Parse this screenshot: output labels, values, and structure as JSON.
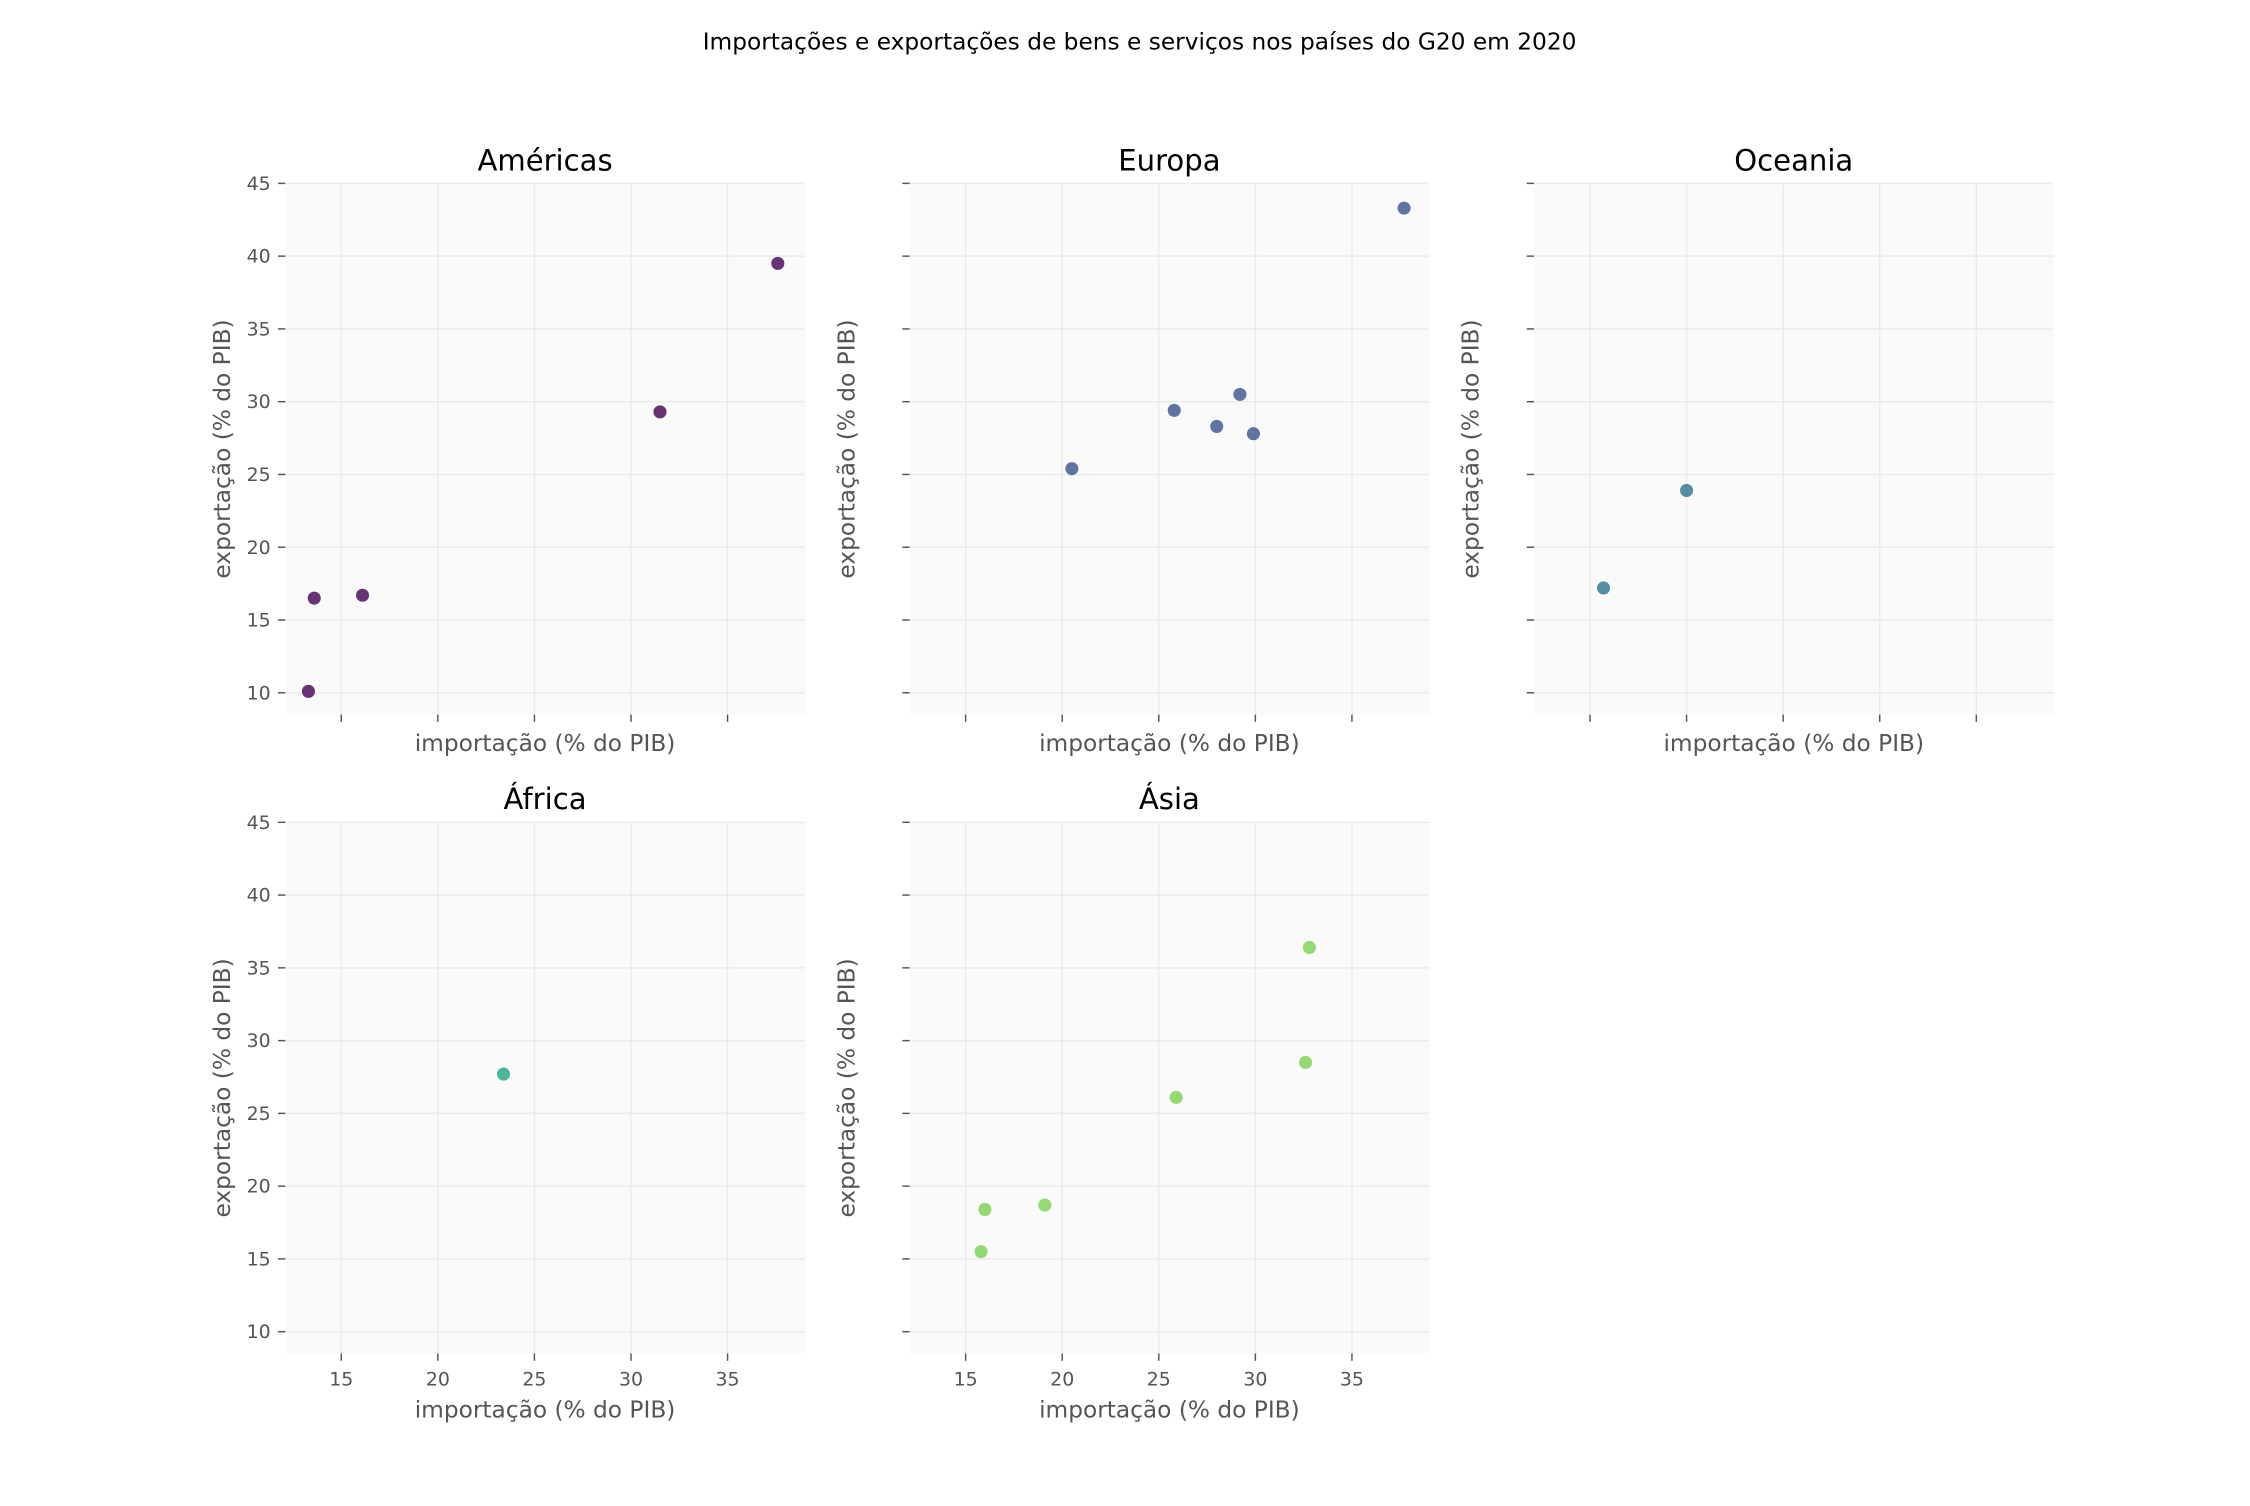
{
  "chart_data": {
    "type": "scatter",
    "title": "Importações e exportações de bens e serviços nos países do G20 em 2020",
    "xlabel": "importação (% do PIB)",
    "ylabel": "exportação (% do PIB)",
    "xlim": [
      12.1,
      39.0
    ],
    "ylim": [
      8.5,
      45.0
    ],
    "xticks": [
      15,
      20,
      25,
      30,
      35
    ],
    "yticks": [
      10,
      15,
      20,
      25,
      30,
      35,
      40,
      45
    ],
    "grid": true,
    "shared_axes": true,
    "layout": "2 rows x 3 columns",
    "plot_background": "#fafafa",
    "grid_color": "#ebebeb",
    "panels": [
      {
        "name": "Américas",
        "color": "#440154",
        "points": [
          {
            "x": 13.3,
            "y": 10.1
          },
          {
            "x": 13.6,
            "y": 16.5
          },
          {
            "x": 16.1,
            "y": 16.7
          },
          {
            "x": 31.5,
            "y": 29.3
          },
          {
            "x": 37.6,
            "y": 39.5
          }
        ]
      },
      {
        "name": "Europa",
        "color": "#3b528b",
        "points": [
          {
            "x": 20.5,
            "y": 25.4
          },
          {
            "x": 25.8,
            "y": 29.4
          },
          {
            "x": 28.0,
            "y": 28.3
          },
          {
            "x": 29.2,
            "y": 30.5
          },
          {
            "x": 29.9,
            "y": 27.8
          },
          {
            "x": 37.7,
            "y": 43.3
          }
        ]
      },
      {
        "name": "Oceania",
        "color": "#2c728e",
        "points": [
          {
            "x": 15.7,
            "y": 17.2
          },
          {
            "x": 20.0,
            "y": 23.9
          }
        ]
      },
      {
        "name": "África",
        "color": "#21a585",
        "points": [
          {
            "x": 23.4,
            "y": 27.7
          }
        ]
      },
      {
        "name": "Ásia",
        "color": "#7ad151",
        "points": [
          {
            "x": 15.8,
            "y": 15.5
          },
          {
            "x": 16.0,
            "y": 18.4
          },
          {
            "x": 19.1,
            "y": 18.7
          },
          {
            "x": 25.9,
            "y": 26.1
          },
          {
            "x": 32.6,
            "y": 28.5
          },
          {
            "x": 32.8,
            "y": 36.4
          }
        ]
      }
    ]
  }
}
